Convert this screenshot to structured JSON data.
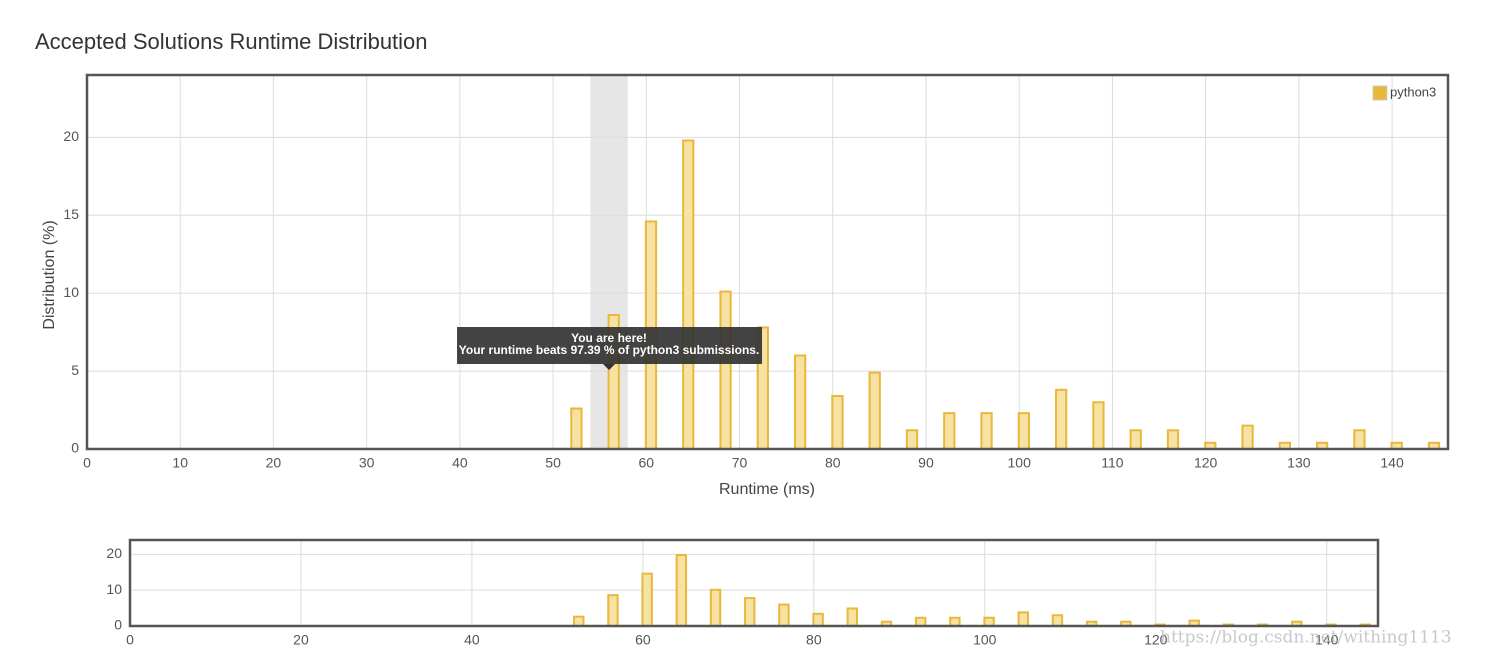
{
  "chart_data": {
    "type": "bar",
    "title": "Accepted Solutions Runtime Distribution",
    "x_label": "Runtime (ms)",
    "y_label": "Distribution (%)",
    "x": [
      52.5,
      56.5,
      60.5,
      64.5,
      68.5,
      72.5,
      76.5,
      80.5,
      84.5,
      88.5,
      92.5,
      96.5,
      100.5,
      104.5,
      108.5,
      112.5,
      116.5,
      120.5,
      124.5,
      128.5,
      132.5,
      136.5,
      140.5,
      144.5
    ],
    "series": [
      {
        "name": "python3",
        "color": "#e8b83a",
        "values": [
          2.6,
          8.6,
          14.6,
          19.8,
          10.1,
          7.8,
          6.0,
          3.4,
          4.9,
          1.2,
          2.3,
          2.3,
          2.3,
          3.8,
          3.0,
          1.2,
          1.2,
          0.4,
          1.5,
          0.4,
          0.4,
          1.2,
          0.4,
          0.4
        ]
      }
    ],
    "xlim": [
      0,
      146
    ],
    "ylim": [
      0,
      24
    ],
    "xticks": [
      0,
      10,
      20,
      30,
      40,
      50,
      60,
      70,
      80,
      90,
      100,
      110,
      120,
      130,
      140
    ],
    "yticks": [
      0,
      5,
      10,
      15,
      20
    ],
    "grid": true,
    "legend": "top-right",
    "highlight": {
      "range": [
        54,
        58
      ],
      "title": "You are here!",
      "text": "Your runtime beats 97.39 % of python3 submissions."
    },
    "navigator": {
      "xlim": [
        0,
        146
      ],
      "ylim": [
        0,
        24
      ],
      "xticks": [
        0,
        20,
        40,
        60,
        80,
        100,
        120,
        140
      ],
      "yticks": [
        0,
        10,
        20
      ]
    },
    "watermark": "https://blog.csdn.net/withing1113"
  }
}
